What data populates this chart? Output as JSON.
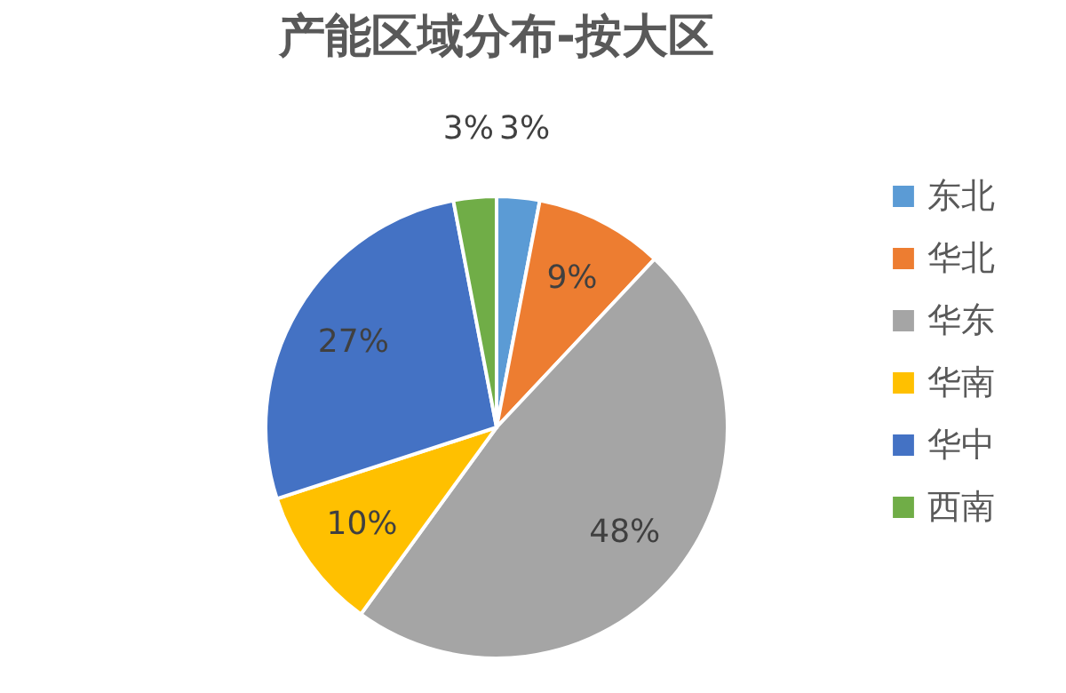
{
  "chart_data": {
    "type": "pie",
    "title": "产能区域分布-按大区",
    "categories": [
      "东北",
      "华北",
      "华东",
      "华南",
      "华中",
      "西南"
    ],
    "values": [
      3,
      9,
      48,
      10,
      27,
      3
    ],
    "colors": [
      "#5b9bd5",
      "#ed7d31",
      "#a5a5a5",
      "#ffc000",
      "#4472c4",
      "#70ad47"
    ],
    "value_labels": [
      "3%",
      "9%",
      "48%",
      "10%",
      "27%",
      "3%"
    ],
    "legend": "right"
  }
}
